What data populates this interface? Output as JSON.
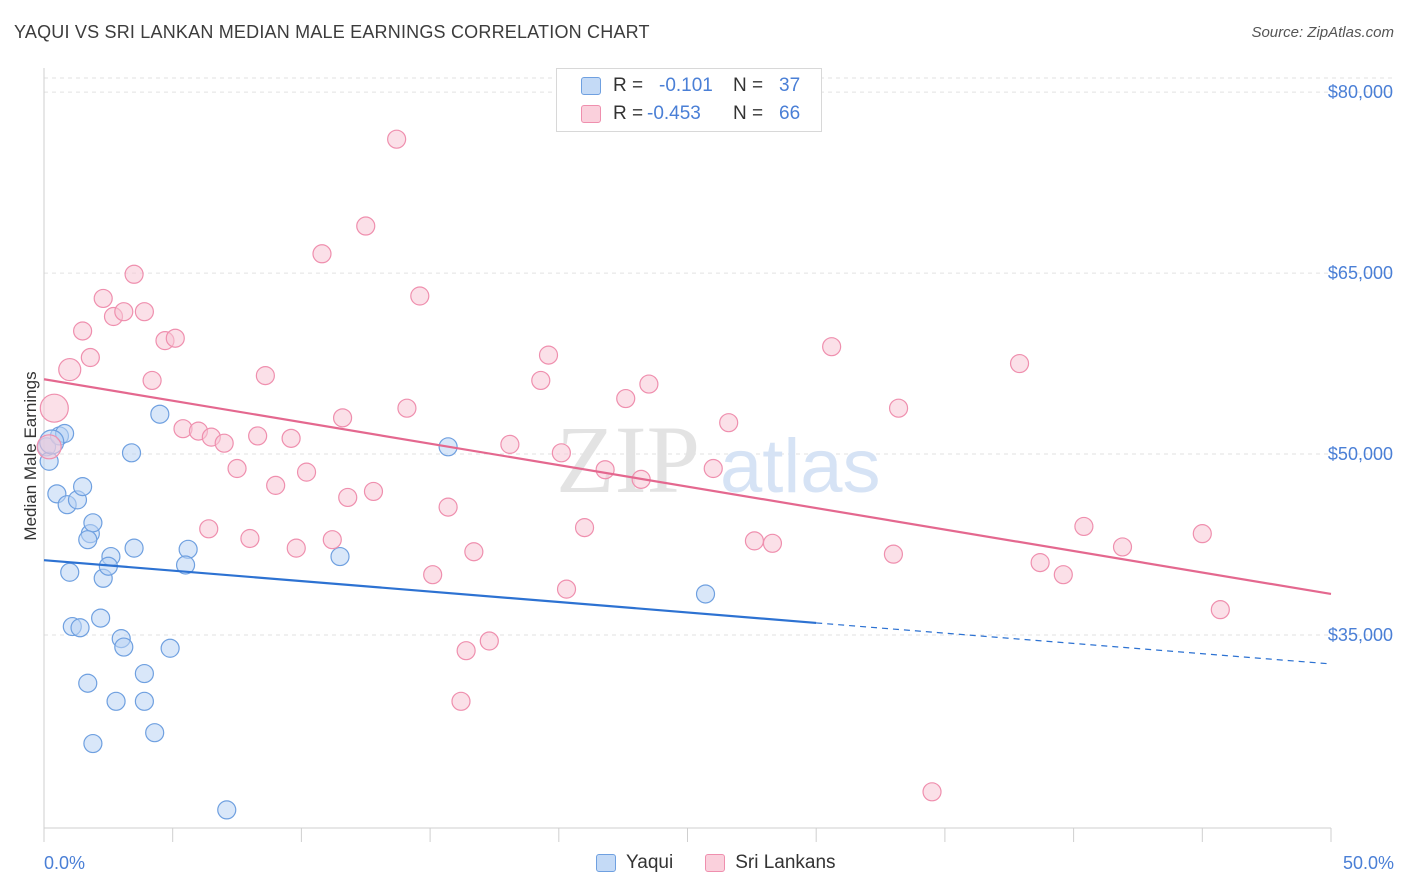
{
  "title": "YAQUI VS SRI LANKAN MEDIAN MALE EARNINGS CORRELATION CHART",
  "source": "Source: ZipAtlas.com",
  "watermark": {
    "zip": "ZIP",
    "atlas": "atlas"
  },
  "legend": {
    "rows": [
      {
        "r_label": "R =",
        "r_value": "-0.101",
        "n_label": "N =",
        "n_value": "37",
        "color": "#aecbf2"
      },
      {
        "r_label": "R =",
        "r_value": "-0.453",
        "n_label": "N =",
        "n_value": "66",
        "color": "#f7bfd0"
      }
    ]
  },
  "bottom_legend": [
    {
      "label": "Yaqui",
      "color": "#aecbf2"
    },
    {
      "label": "Sri Lankans",
      "color": "#f7bfd0"
    }
  ],
  "chart_data": {
    "type": "scatter",
    "title": "YAQUI VS SRI LANKAN MEDIAN MALE EARNINGS CORRELATION CHART",
    "xlabel": "",
    "ylabel": "Median Male Earnings",
    "xlim": [
      0,
      50
    ],
    "ylim": [
      19000,
      82000
    ],
    "x_tick_labels": [
      "0.0%",
      "50.0%"
    ],
    "y_ticks": [
      {
        "value": 35000,
        "label": "$35,000"
      },
      {
        "value": 50000,
        "label": "$50,000"
      },
      {
        "value": 65000,
        "label": "$65,000"
      },
      {
        "value": 80000,
        "label": "$80,000"
      }
    ],
    "grid": true,
    "series": [
      {
        "name": "Yaqui",
        "color": "#6fa0e0",
        "fill": "#b9d3f4",
        "points": [
          [
            0.1,
            50600
          ],
          [
            0.2,
            49400
          ],
          [
            0.6,
            51500
          ],
          [
            0.8,
            51700
          ],
          [
            0.5,
            46700
          ],
          [
            0.9,
            45800
          ],
          [
            1.3,
            46200
          ],
          [
            1.5,
            47300
          ],
          [
            1.8,
            43400
          ],
          [
            1.9,
            44300
          ],
          [
            1.7,
            42900
          ],
          [
            1.0,
            40200
          ],
          [
            2.3,
            39700
          ],
          [
            2.6,
            41500
          ],
          [
            2.5,
            40700
          ],
          [
            3.5,
            42200
          ],
          [
            5.6,
            42100
          ],
          [
            5.5,
            40800
          ],
          [
            3.4,
            50100
          ],
          [
            4.5,
            53300
          ],
          [
            15.7,
            50600
          ],
          [
            11.5,
            41500
          ],
          [
            25.7,
            38400
          ],
          [
            1.1,
            35700
          ],
          [
            1.4,
            35600
          ],
          [
            2.2,
            36400
          ],
          [
            3.0,
            34700
          ],
          [
            3.1,
            34000
          ],
          [
            4.9,
            33900
          ],
          [
            1.7,
            31000
          ],
          [
            2.8,
            29500
          ],
          [
            3.9,
            31800
          ],
          [
            3.9,
            29500
          ],
          [
            1.9,
            26000
          ],
          [
            4.3,
            26900
          ],
          [
            7.1,
            20500
          ],
          [
            0.3,
            51000
          ]
        ],
        "trend": {
          "x": [
            0.0,
            30.0
          ],
          "y": [
            41200,
            36000
          ],
          "dashed_to": [
            50.0,
            32600
          ]
        }
      },
      {
        "name": "Sri Lankans",
        "color": "#ef8fae",
        "fill": "#f8c6d5",
        "points": [
          [
            0.2,
            50600
          ],
          [
            0.4,
            53800
          ],
          [
            1.0,
            57000
          ],
          [
            1.5,
            60200
          ],
          [
            1.8,
            58000
          ],
          [
            2.3,
            62900
          ],
          [
            2.7,
            61400
          ],
          [
            3.1,
            61800
          ],
          [
            3.5,
            64900
          ],
          [
            3.9,
            61800
          ],
          [
            4.2,
            56100
          ],
          [
            4.7,
            59400
          ],
          [
            5.1,
            59600
          ],
          [
            5.4,
            52100
          ],
          [
            6.0,
            51900
          ],
          [
            6.5,
            51400
          ],
          [
            7.0,
            50900
          ],
          [
            7.5,
            48800
          ],
          [
            8.3,
            51500
          ],
          [
            8.6,
            56500
          ],
          [
            9.0,
            47400
          ],
          [
            9.6,
            51300
          ],
          [
            10.2,
            48500
          ],
          [
            10.8,
            66600
          ],
          [
            11.6,
            53000
          ],
          [
            11.8,
            46400
          ],
          [
            12.5,
            68900
          ],
          [
            12.8,
            46900
          ],
          [
            13.7,
            76100
          ],
          [
            14.1,
            53800
          ],
          [
            14.6,
            63100
          ],
          [
            15.1,
            40000
          ],
          [
            15.7,
            45600
          ],
          [
            16.4,
            33700
          ],
          [
            16.7,
            41900
          ],
          [
            17.3,
            34500
          ],
          [
            18.1,
            50800
          ],
          [
            19.3,
            56100
          ],
          [
            19.6,
            58200
          ],
          [
            20.1,
            50100
          ],
          [
            20.3,
            38800
          ],
          [
            21.0,
            43900
          ],
          [
            21.8,
            48700
          ],
          [
            22.6,
            54600
          ],
          [
            23.2,
            47900
          ],
          [
            23.5,
            55800
          ],
          [
            26.0,
            48800
          ],
          [
            26.6,
            52600
          ],
          [
            27.6,
            42800
          ],
          [
            28.3,
            42600
          ],
          [
            30.6,
            58900
          ],
          [
            33.0,
            41700
          ],
          [
            33.2,
            53800
          ],
          [
            34.5,
            22000
          ],
          [
            37.9,
            57500
          ],
          [
            38.7,
            41000
          ],
          [
            39.6,
            40000
          ],
          [
            40.4,
            44000
          ],
          [
            41.9,
            42300
          ],
          [
            45.0,
            43400
          ],
          [
            45.7,
            37100
          ],
          [
            8.0,
            43000
          ],
          [
            9.8,
            42200
          ],
          [
            11.2,
            42900
          ],
          [
            16.2,
            29500
          ],
          [
            6.4,
            43800
          ]
        ],
        "trend": {
          "x": [
            0.0,
            50.0
          ],
          "y": [
            56200,
            38400
          ]
        }
      }
    ]
  }
}
